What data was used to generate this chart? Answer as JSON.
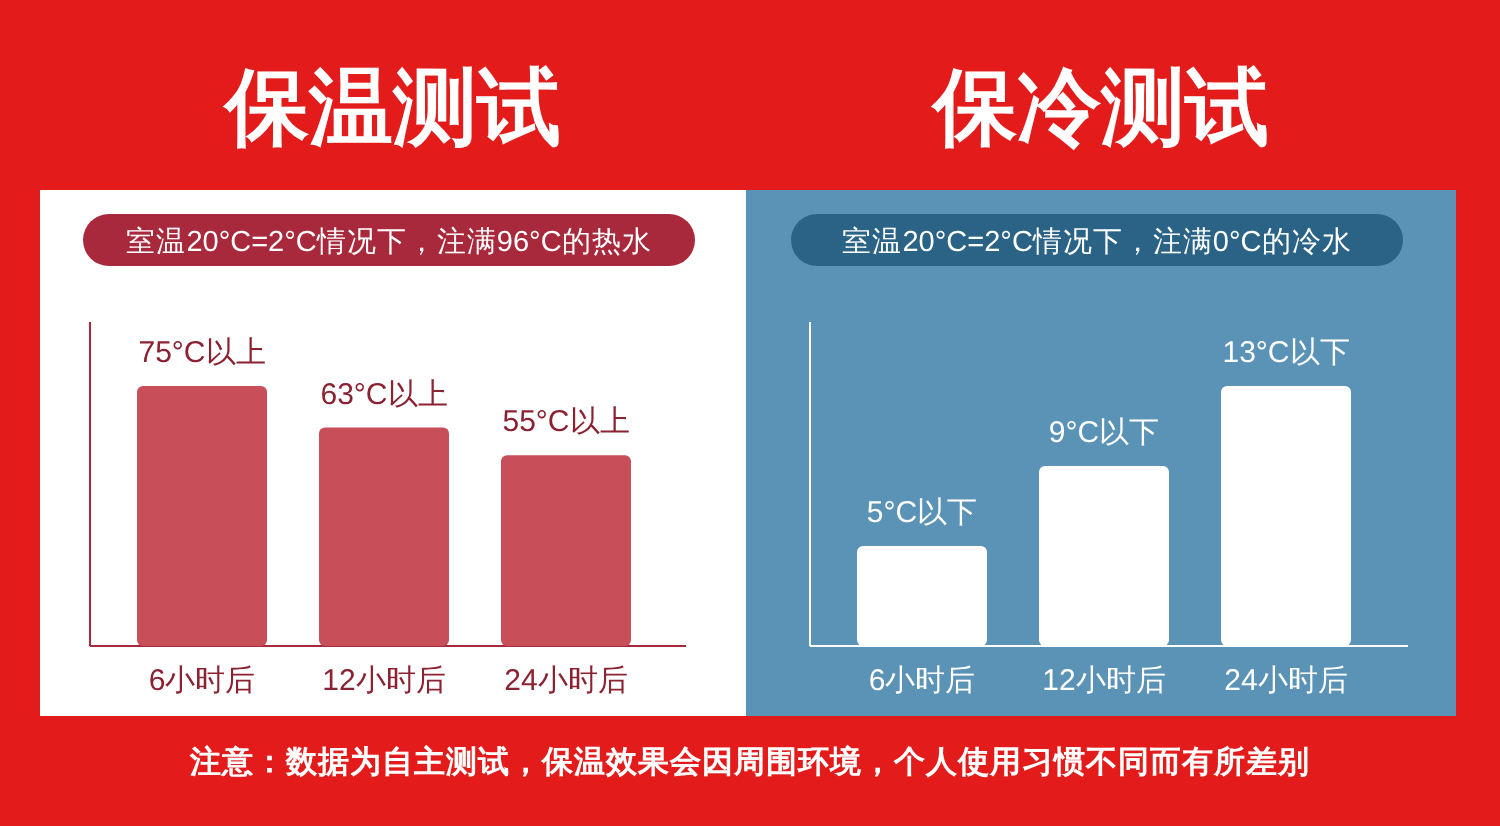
{
  "chart_data": [
    {
      "type": "bar",
      "title": "保温测试",
      "subtitle": "室温20°C=2°C情况下，注满96°C的热水",
      "categories": [
        "6小时后",
        "12小时后",
        "24小时后"
      ],
      "values": [
        75,
        63,
        55
      ],
      "color": "#c84e5a",
      "value_labels": [
        "75°C以上",
        "63°C以上",
        "55°C以上"
      ]
    },
    {
      "type": "bar",
      "title": "保冷测试",
      "subtitle": "室温20°C=2°C情况下，注满0°C的冷水",
      "categories": [
        "6小时后",
        "12小时后",
        "24小时后"
      ],
      "values": [
        5,
        9,
        13
      ],
      "color": "#ffffff",
      "value_labels": [
        "5°C以下",
        "9°C以下",
        "13°C以下"
      ],
      "annotations": [
        "注意：数据为自主测试，保温效果会因周围环境，个人使用习惯不同而有所差别"
      ]
    }
  ]
}
